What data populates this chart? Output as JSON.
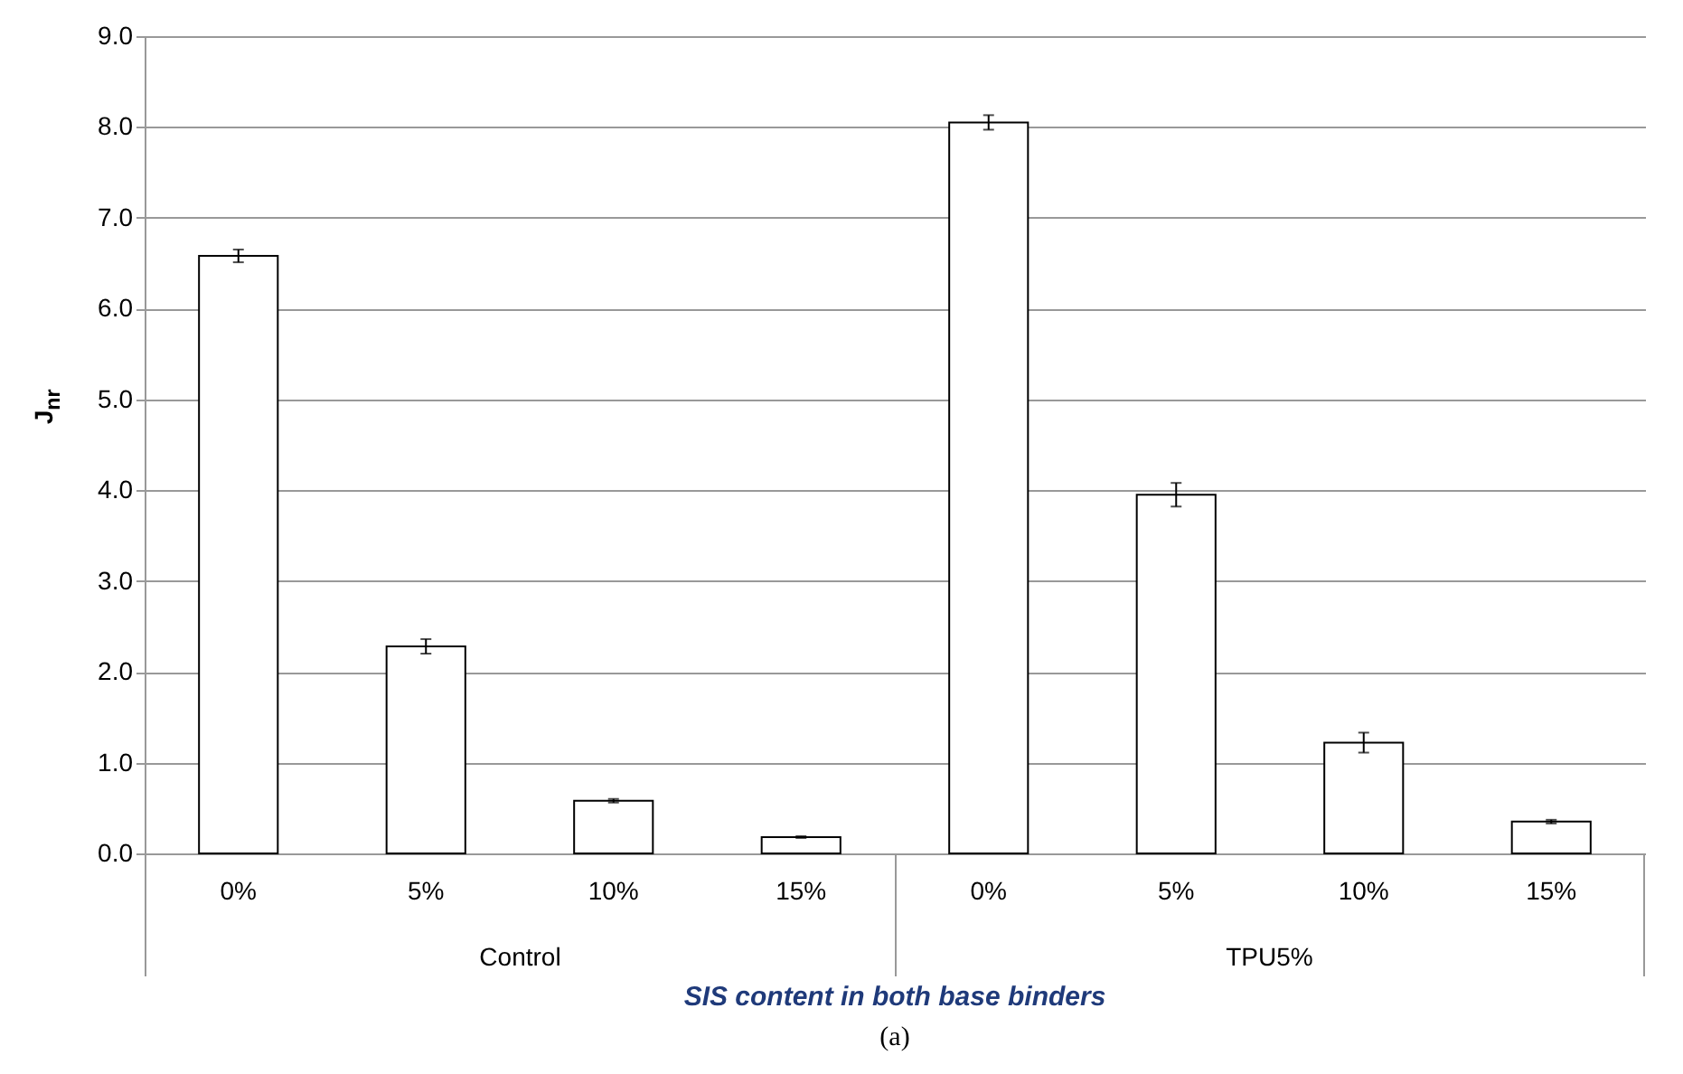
{
  "chart_data": {
    "type": "bar",
    "ylabel": "J$_{nr}$",
    "xlabel": "SIS content in both base binders",
    "categories": [
      "0%",
      "5%",
      "10%",
      "15%",
      "0%",
      "5%",
      "10%",
      "15%"
    ],
    "values": [
      6.58,
      2.28,
      0.58,
      0.18,
      8.05,
      3.95,
      1.22,
      0.35
    ],
    "errors": [
      0.07,
      0.08,
      0.02,
      0.01,
      0.08,
      0.13,
      0.11,
      0.02
    ],
    "color": "#ffffff",
    "ylim": [
      0,
      9
    ],
    "yticks": [
      {
        "value": 0,
        "label": "0.0"
      },
      {
        "value": 1,
        "label": "1.0"
      },
      {
        "value": 2,
        "label": "2.0"
      },
      {
        "value": 3,
        "label": "3.0"
      },
      {
        "value": 4,
        "label": "4.0"
      },
      {
        "value": 5,
        "label": "5.0"
      },
      {
        "value": 6,
        "label": "6.0"
      },
      {
        "value": 7,
        "label": "7.0"
      },
      {
        "value": 8,
        "label": "8.0"
      },
      {
        "value": 9,
        "label": "9.0"
      }
    ],
    "grid": "y",
    "annotations": [
      "Control",
      "TPU5%",
      "(a)"
    ]
  }
}
